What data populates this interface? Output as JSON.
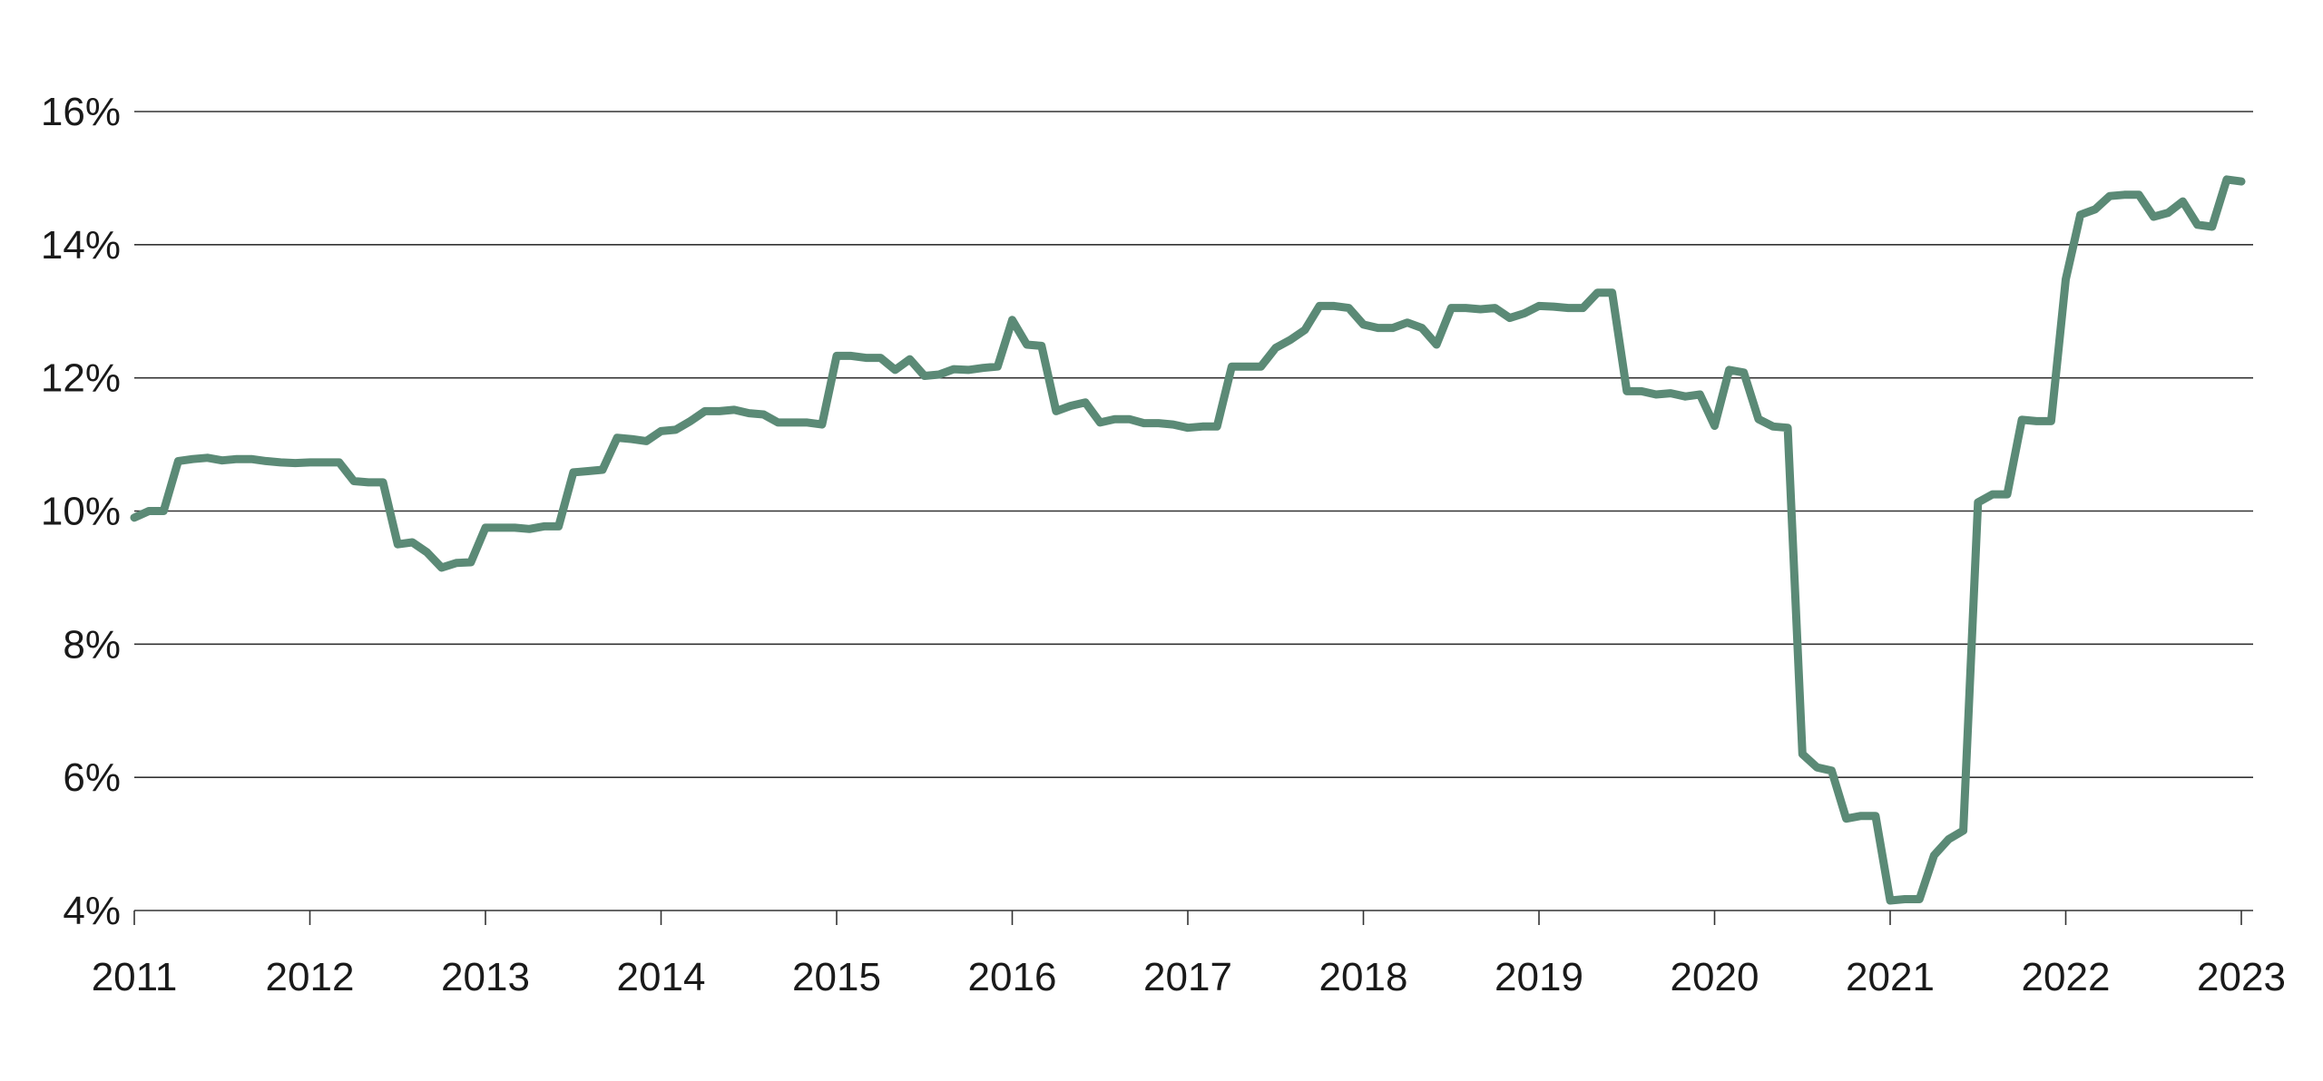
{
  "chart_data": {
    "type": "line",
    "title": "",
    "xlabel": "",
    "ylabel": "",
    "x_axis": {
      "type": "date",
      "range": [
        "2011-01",
        "2023-01"
      ],
      "tick_labels": [
        "2011",
        "2012",
        "2013",
        "2014",
        "2015",
        "2016",
        "2017",
        "2018",
        "2019",
        "2020",
        "2021",
        "2022",
        "2023"
      ]
    },
    "y_axis": {
      "range": [
        4,
        16
      ],
      "unit": "%",
      "tick_values": [
        4,
        6,
        8,
        10,
        12,
        14,
        16
      ],
      "tick_labels": [
        "4%",
        "6%",
        "8%",
        "10%",
        "12%",
        "14%",
        "16%"
      ]
    },
    "grid": "horizontal",
    "legend": "none",
    "series": [
      {
        "color": "#5b8a76",
        "points": [
          [
            "2011-01",
            9.9
          ],
          [
            "2011-02",
            10.0
          ],
          [
            "2011-03",
            10.0
          ],
          [
            "2011-04",
            10.75
          ],
          [
            "2011-05",
            10.78
          ],
          [
            "2011-06",
            10.8
          ],
          [
            "2011-07",
            10.76
          ],
          [
            "2011-08",
            10.78
          ],
          [
            "2011-09",
            10.78
          ],
          [
            "2011-10",
            10.75
          ],
          [
            "2011-11",
            10.73
          ],
          [
            "2011-12",
            10.72
          ],
          [
            "2012-01",
            10.73
          ],
          [
            "2012-02",
            10.73
          ],
          [
            "2012-03",
            10.73
          ],
          [
            "2012-04",
            10.45
          ],
          [
            "2012-05",
            10.43
          ],
          [
            "2012-06",
            10.43
          ],
          [
            "2012-07",
            9.5
          ],
          [
            "2012-08",
            9.53
          ],
          [
            "2012-09",
            9.38
          ],
          [
            "2012-10",
            9.15
          ],
          [
            "2012-11",
            9.22
          ],
          [
            "2012-12",
            9.23
          ],
          [
            "2013-01",
            9.75
          ],
          [
            "2013-02",
            9.75
          ],
          [
            "2013-03",
            9.75
          ],
          [
            "2013-04",
            9.73
          ],
          [
            "2013-05",
            9.77
          ],
          [
            "2013-06",
            9.77
          ],
          [
            "2013-07",
            10.58
          ],
          [
            "2013-08",
            10.6
          ],
          [
            "2013-09",
            10.62
          ],
          [
            "2013-10",
            11.1
          ],
          [
            "2013-11",
            11.08
          ],
          [
            "2013-12",
            11.05
          ],
          [
            "2014-01",
            11.2
          ],
          [
            "2014-02",
            11.22
          ],
          [
            "2014-03",
            11.35
          ],
          [
            "2014-04",
            11.5
          ],
          [
            "2014-05",
            11.5
          ],
          [
            "2014-06",
            11.52
          ],
          [
            "2014-07",
            11.47
          ],
          [
            "2014-08",
            11.45
          ],
          [
            "2014-09",
            11.33
          ],
          [
            "2014-10",
            11.33
          ],
          [
            "2014-11",
            11.33
          ],
          [
            "2014-12",
            11.3
          ],
          [
            "2015-01",
            12.33
          ],
          [
            "2015-02",
            12.33
          ],
          [
            "2015-03",
            12.3
          ],
          [
            "2015-04",
            12.3
          ],
          [
            "2015-05",
            12.12
          ],
          [
            "2015-06",
            12.28
          ],
          [
            "2015-07",
            12.03
          ],
          [
            "2015-08",
            12.05
          ],
          [
            "2015-09",
            12.13
          ],
          [
            "2015-10",
            12.12
          ],
          [
            "2015-11",
            12.15
          ],
          [
            "2015-12",
            12.17
          ],
          [
            "2016-01",
            12.87
          ],
          [
            "2016-02",
            12.5
          ],
          [
            "2016-03",
            12.48
          ],
          [
            "2016-04",
            11.5
          ],
          [
            "2016-05",
            11.58
          ],
          [
            "2016-06",
            11.63
          ],
          [
            "2016-07",
            11.33
          ],
          [
            "2016-08",
            11.38
          ],
          [
            "2016-09",
            11.38
          ],
          [
            "2016-10",
            11.32
          ],
          [
            "2016-11",
            11.32
          ],
          [
            "2016-12",
            11.3
          ],
          [
            "2017-01",
            11.25
          ],
          [
            "2017-02",
            11.27
          ],
          [
            "2017-03",
            11.27
          ],
          [
            "2017-04",
            12.17
          ],
          [
            "2017-05",
            12.17
          ],
          [
            "2017-06",
            12.17
          ],
          [
            "2017-07",
            12.45
          ],
          [
            "2017-08",
            12.57
          ],
          [
            "2017-09",
            12.72
          ],
          [
            "2017-10",
            13.08
          ],
          [
            "2017-11",
            13.08
          ],
          [
            "2017-12",
            13.05
          ],
          [
            "2018-01",
            12.8
          ],
          [
            "2018-02",
            12.75
          ],
          [
            "2018-03",
            12.75
          ],
          [
            "2018-04",
            12.83
          ],
          [
            "2018-05",
            12.75
          ],
          [
            "2018-06",
            12.5
          ],
          [
            "2018-07",
            13.05
          ],
          [
            "2018-08",
            13.05
          ],
          [
            "2018-09",
            13.03
          ],
          [
            "2018-10",
            13.05
          ],
          [
            "2018-11",
            12.9
          ],
          [
            "2018-12",
            12.97
          ],
          [
            "2019-01",
            13.08
          ],
          [
            "2019-02",
            13.07
          ],
          [
            "2019-03",
            13.05
          ],
          [
            "2019-04",
            13.05
          ],
          [
            "2019-05",
            13.28
          ],
          [
            "2019-06",
            13.28
          ],
          [
            "2019-07",
            11.8
          ],
          [
            "2019-08",
            11.8
          ],
          [
            "2019-09",
            11.75
          ],
          [
            "2019-10",
            11.77
          ],
          [
            "2019-11",
            11.72
          ],
          [
            "2019-12",
            11.75
          ],
          [
            "2020-01",
            11.28
          ],
          [
            "2020-02",
            12.12
          ],
          [
            "2020-03",
            12.08
          ],
          [
            "2020-04",
            11.38
          ],
          [
            "2020-05",
            11.27
          ],
          [
            "2020-06",
            11.25
          ],
          [
            "2020-07",
            6.35
          ],
          [
            "2020-08",
            6.15
          ],
          [
            "2020-09",
            6.1
          ],
          [
            "2020-10",
            5.38
          ],
          [
            "2020-11",
            5.42
          ],
          [
            "2020-12",
            5.42
          ],
          [
            "2021-01",
            4.15
          ],
          [
            "2021-02",
            4.17
          ],
          [
            "2021-03",
            4.17
          ],
          [
            "2021-04",
            4.83
          ],
          [
            "2021-05",
            5.07
          ],
          [
            "2021-06",
            5.2
          ],
          [
            "2021-07",
            10.13
          ],
          [
            "2021-08",
            10.25
          ],
          [
            "2021-09",
            10.25
          ],
          [
            "2021-10",
            11.37
          ],
          [
            "2021-11",
            11.35
          ],
          [
            "2021-12",
            11.35
          ],
          [
            "2022-01",
            13.48
          ],
          [
            "2022-02",
            14.45
          ],
          [
            "2022-03",
            14.53
          ],
          [
            "2022-04",
            14.73
          ],
          [
            "2022-05",
            14.75
          ],
          [
            "2022-06",
            14.75
          ],
          [
            "2022-07",
            14.42
          ],
          [
            "2022-08",
            14.48
          ],
          [
            "2022-09",
            14.65
          ],
          [
            "2022-10",
            14.3
          ],
          [
            "2022-11",
            14.27
          ],
          [
            "2022-12",
            14.98
          ],
          [
            "2023-01",
            14.95
          ]
        ]
      }
    ]
  }
}
